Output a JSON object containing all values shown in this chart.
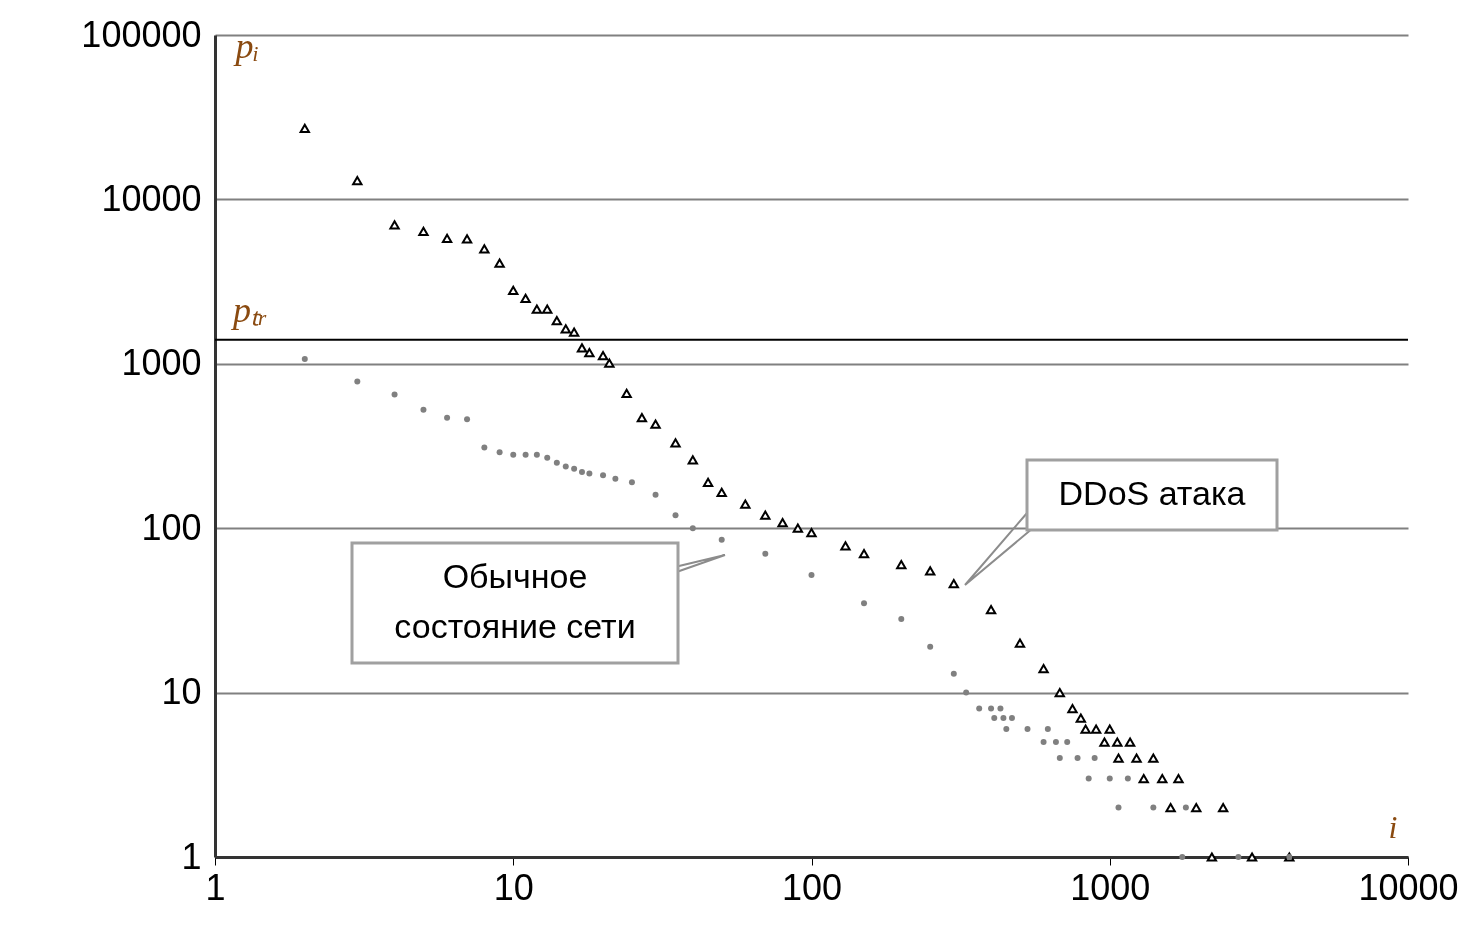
{
  "chart_data": {
    "type": "scatter",
    "xlabel": "i",
    "ylabel": "pᵢ",
    "log": "xy",
    "grid": "y",
    "xlim": [
      1,
      10000
    ],
    "xticks": [
      1,
      10,
      100,
      1000,
      10000
    ],
    "ylim": [
      1,
      100000
    ],
    "yticks": [
      1,
      10,
      100,
      1000,
      10000,
      100000
    ],
    "ref_lines": [
      {
        "axis": "y",
        "value": 1400,
        "label": "pₜᵣ",
        "color": "#000000"
      }
    ],
    "annotations": [
      "DDoS атака",
      "Обычное состояние сети"
    ],
    "series": [
      {
        "color": "#000000",
        "marker": "triangle",
        "x": [
          2,
          3,
          4,
          5,
          6,
          7,
          8,
          9,
          10,
          11,
          12,
          13,
          14,
          15,
          16,
          17,
          18,
          20,
          21,
          24,
          27,
          30,
          35,
          40,
          45,
          50,
          60,
          70,
          80,
          90,
          100,
          130,
          150,
          200,
          250,
          300,
          400,
          500,
          600,
          680,
          750,
          800,
          830,
          900,
          1000,
          960,
          1060,
          1170,
          1070,
          1230,
          1400,
          1300,
          1500,
          1700,
          1600,
          1950,
          2400,
          2200,
          3000,
          4000
        ],
        "values": [
          27000,
          13000,
          7000,
          6400,
          5800,
          5750,
          5000,
          4100,
          2800,
          2500,
          2150,
          2150,
          1830,
          1630,
          1560,
          1250,
          1170,
          1120,
          1010,
          660,
          470,
          430,
          330,
          260,
          190,
          165,
          140,
          120,
          108,
          100,
          94,
          78,
          70,
          60,
          55,
          46,
          32,
          20,
          14,
          10,
          8,
          7,
          6,
          6,
          6,
          5,
          5,
          5,
          4,
          4,
          4,
          3,
          3,
          3,
          2,
          2,
          2,
          1,
          1,
          1
        ]
      },
      {
        "color": "#808080",
        "marker": "circle",
        "x": [
          2,
          3,
          4,
          5,
          6,
          7,
          8,
          9,
          10,
          11,
          12,
          13,
          14,
          15,
          16,
          17,
          18,
          20,
          22,
          25,
          30,
          35,
          40,
          50,
          70,
          100,
          150,
          200,
          250,
          300,
          330,
          365,
          400,
          430,
          410,
          440,
          470,
          450,
          530,
          620,
          600,
          660,
          720,
          680,
          780,
          890,
          850,
          1000,
          1150,
          1070,
          1400,
          1800,
          1750,
          2700,
          4000
        ],
        "values": [
          1070,
          780,
          650,
          525,
          470,
          460,
          310,
          290,
          280,
          280,
          280,
          268,
          250,
          237,
          230,
          220,
          215,
          210,
          200,
          190,
          160,
          120,
          100,
          85,
          70,
          52,
          35,
          28,
          19,
          13,
          10,
          8,
          8,
          8,
          7,
          7,
          7,
          6,
          6,
          6,
          5,
          5,
          5,
          4,
          4,
          4,
          3,
          3,
          3,
          2,
          2,
          2,
          1,
          1,
          1
        ]
      }
    ]
  }
}
